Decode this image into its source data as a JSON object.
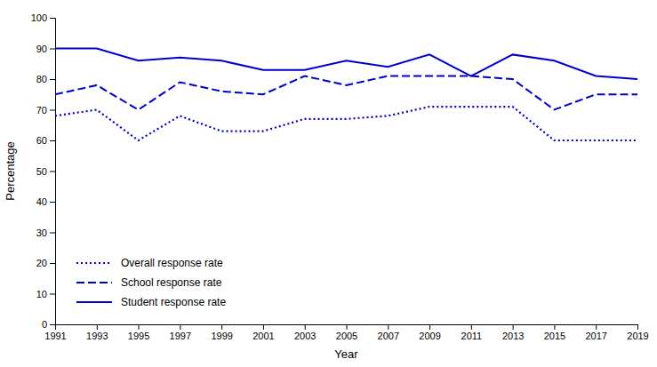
{
  "chart_data": {
    "type": "line",
    "xlabel": "Year",
    "ylabel": "Percentage",
    "x": [
      1991,
      1993,
      1995,
      1997,
      1999,
      2001,
      2003,
      2005,
      2007,
      2009,
      2011,
      2013,
      2015,
      2017,
      2019
    ],
    "series": [
      {
        "name": "Student response rate",
        "color": "#0000CD",
        "line_style": "solid",
        "values": [
          90,
          90,
          86,
          87,
          86,
          83,
          83,
          86,
          84,
          88,
          81,
          88,
          86,
          81,
          80
        ]
      },
      {
        "name": "School response rate",
        "color": "#0000CD",
        "line_style": "dashed",
        "values": [
          75,
          78,
          70,
          79,
          76,
          75,
          81,
          78,
          81,
          81,
          81,
          80,
          70,
          75,
          75
        ]
      },
      {
        "name": "Overall response rate",
        "color": "#0000CD",
        "line_style": "dotted",
        "values": [
          68,
          70,
          60,
          68,
          63,
          63,
          67,
          67,
          68,
          71,
          71,
          71,
          60,
          60,
          60
        ]
      }
    ],
    "xlim": [
      1991,
      2019
    ],
    "xticks": [
      1991,
      1993,
      1995,
      1997,
      1999,
      2001,
      2003,
      2005,
      2007,
      2009,
      2011,
      2013,
      2015,
      2017,
      2019
    ],
    "ylim": [
      0,
      100
    ],
    "yticks": [
      0,
      10,
      20,
      30,
      40,
      50,
      60,
      70,
      80,
      90,
      100
    ],
    "grid": false,
    "legend": "lower left"
  }
}
